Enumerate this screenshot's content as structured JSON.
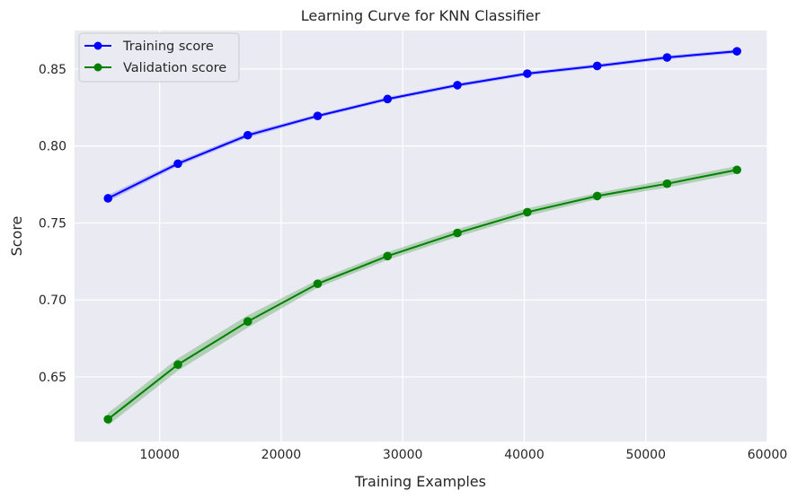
{
  "chart_data": {
    "type": "line",
    "title": "Learning Curve for KNN Classifier",
    "xlabel": "Training Examples",
    "ylabel": "Score",
    "xlim": [
      3000,
      60000
    ],
    "ylim": [
      0.608,
      0.875
    ],
    "x_ticks": [
      10000,
      20000,
      30000,
      40000,
      50000,
      60000
    ],
    "x_tick_labels": [
      "10000",
      "20000",
      "30000",
      "40000",
      "50000",
      "60000"
    ],
    "y_ticks": [
      0.65,
      0.7,
      0.75,
      0.8,
      0.85
    ],
    "y_tick_labels": [
      "0.65",
      "0.70",
      "0.75",
      "0.80",
      "0.85"
    ],
    "grid": true,
    "legend_position": "top-left",
    "x": [
      5750,
      11500,
      17250,
      23000,
      28750,
      34500,
      40250,
      46000,
      51750,
      57500
    ],
    "series": [
      {
        "name": "Training score",
        "color": "#0000ff",
        "band_color": "#6666ff",
        "values": [
          0.766,
          0.7885,
          0.807,
          0.8195,
          0.8305,
          0.8395,
          0.847,
          0.852,
          0.8575,
          0.8615
        ],
        "band_half_width": [
          0.002,
          0.0015,
          0.0015,
          0.0012,
          0.0012,
          0.0012,
          0.0012,
          0.0012,
          0.0012,
          0.0012
        ]
      },
      {
        "name": "Validation score",
        "color": "#008000",
        "band_color": "#5aa85a",
        "values": [
          0.6225,
          0.658,
          0.686,
          0.7105,
          0.7285,
          0.7435,
          0.757,
          0.7675,
          0.7755,
          0.7845
        ],
        "band_half_width": [
          0.004,
          0.004,
          0.004,
          0.0025,
          0.0025,
          0.0025,
          0.0025,
          0.002,
          0.0025,
          0.0025
        ]
      }
    ]
  }
}
